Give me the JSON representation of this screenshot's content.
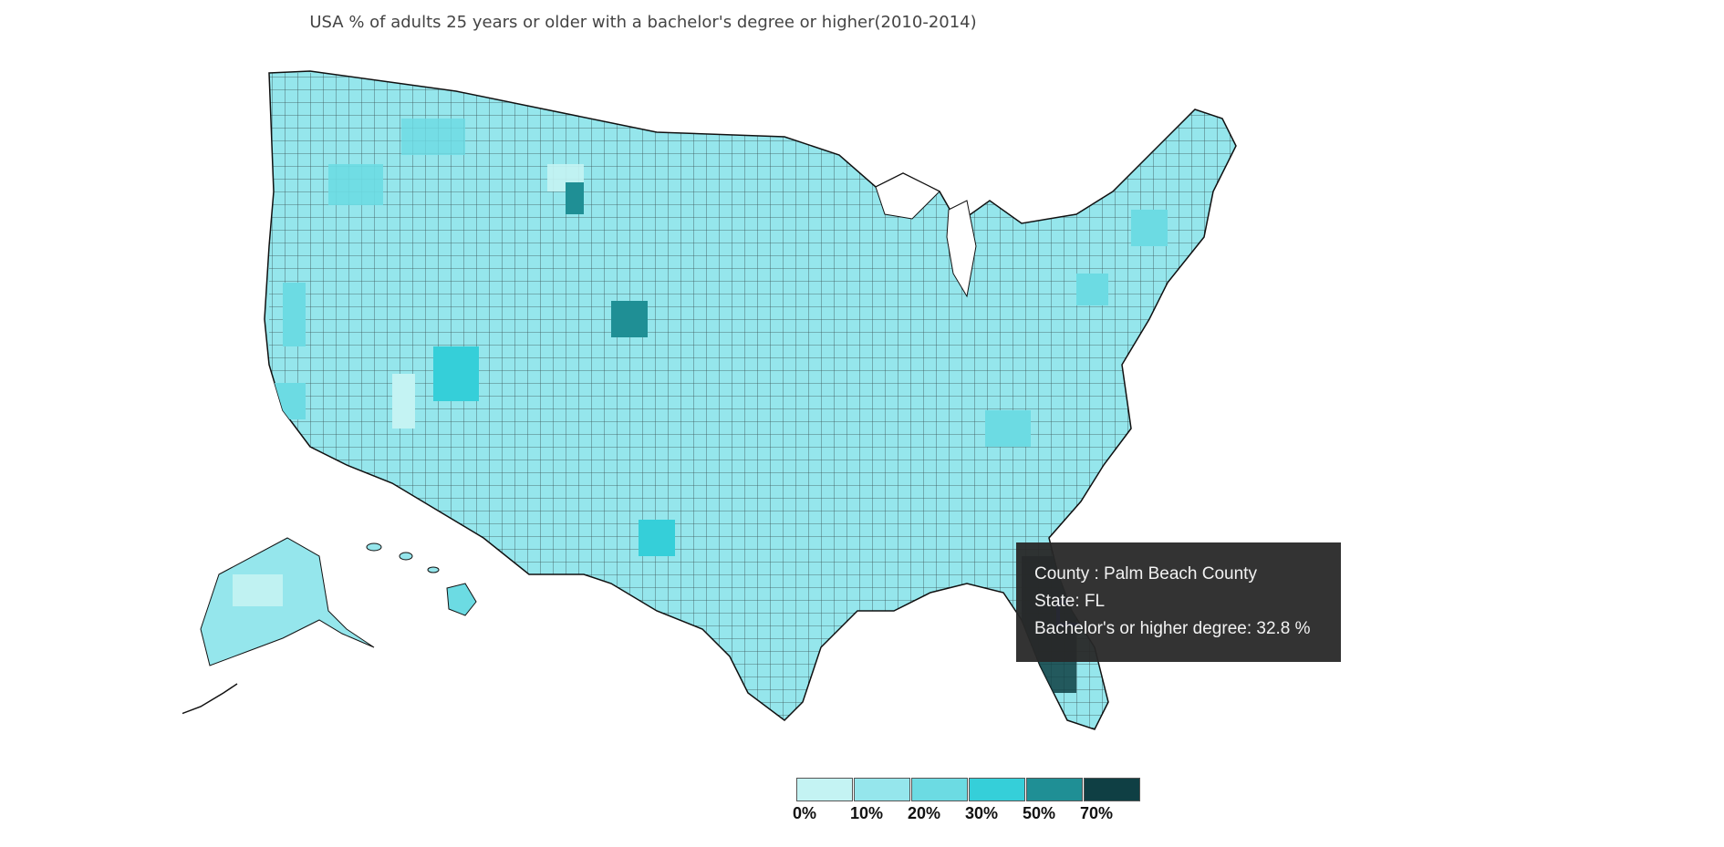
{
  "subtitle": "USA % of adults 25 years or older with a bachelor's degree or higher(2010-2014)",
  "tooltip": {
    "county_line": "County : Palm Beach County",
    "state_line": "State: FL",
    "value_line": "Bachelor's or higher degree: 32.8 %"
  },
  "legend": {
    "bins": [
      {
        "label": "0%",
        "color": "#c4f3f3"
      },
      {
        "label": "10%",
        "color": "#95e6ec"
      },
      {
        "label": "20%",
        "color": "#6cdbe3"
      },
      {
        "label": "30%",
        "color": "#35cfd9"
      },
      {
        "label": "50%",
        "color": "#1f8f95"
      },
      {
        "label": "70%",
        "color": "#0f3f44"
      }
    ]
  },
  "highlight": {
    "county": "Palm Beach County",
    "state": "FL",
    "color": "#1a3cf0"
  },
  "colors": {
    "border": "#111111",
    "base_fill": "#95e6ec"
  }
}
